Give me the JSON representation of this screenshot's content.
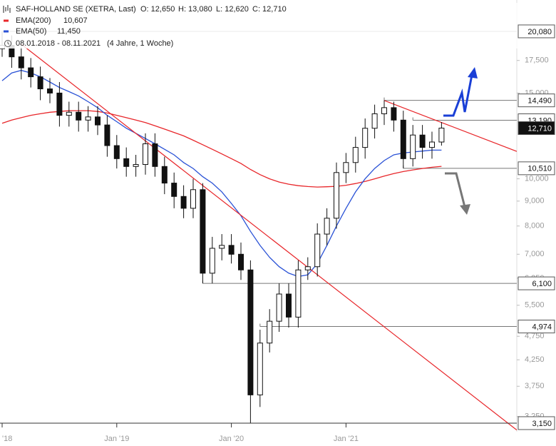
{
  "chart_data": {
    "type": "candlestick",
    "log_scale": true,
    "header": {
      "title": "SAF-HOLLAND SE (XETRA, Last)",
      "open": "O: 12,650",
      "high": "H: 13,080",
      "low": "L: 12,620",
      "close": "C: 12,710",
      "period": "08.01.2018 - 08.11.2021",
      "span": "(4 Jahre, 1 Woche)"
    },
    "x": [
      "2018-01",
      "2018-02",
      "2018-03",
      "2018-04",
      "2018-05",
      "2018-06",
      "2018-07",
      "2018-08",
      "2018-09",
      "2018-10",
      "2018-11",
      "2018-12",
      "2019-01",
      "2019-02",
      "2019-03",
      "2019-04",
      "2019-05",
      "2019-06",
      "2019-07",
      "2019-08",
      "2019-09",
      "2019-10",
      "2019-11",
      "2019-12",
      "2020-01",
      "2020-02",
      "2020-03",
      "2020-04",
      "2020-05",
      "2020-06",
      "2020-07",
      "2020-08",
      "2020-09",
      "2020-10",
      "2020-11",
      "2020-12",
      "2021-01",
      "2021-02",
      "2021-03",
      "2021-04",
      "2021-05",
      "2021-06",
      "2021-07",
      "2021-08",
      "2021-09",
      "2021-10",
      "2021-11"
    ],
    "open": [
      18500,
      18800,
      17800,
      16900,
      16200,
      15300,
      15000,
      13500,
      13700,
      13200,
      13400,
      12900,
      11700,
      11000,
      10600,
      10700,
      11800,
      10600,
      9800,
      9200,
      8700,
      9500,
      6400,
      7200,
      7300,
      7000,
      6500,
      3600,
      4600,
      5100,
      5800,
      5200,
      6500,
      6600,
      7700,
      8300,
      10300,
      10800,
      11600,
      12700,
      13600,
      14000,
      13200,
      11000,
      12300,
      11600,
      11900
    ],
    "high": [
      20080,
      19700,
      18700,
      17700,
      17000,
      16100,
      15800,
      14400,
      14400,
      14100,
      14100,
      13500,
      12300,
      11600,
      11200,
      12400,
      12400,
      11100,
      10300,
      9700,
      10000,
      9800,
      7600,
      7700,
      7700,
      7400,
      6800,
      4900,
      5400,
      6100,
      6100,
      6800,
      6900,
      8100,
      8700,
      10800,
      11300,
      12200,
      13300,
      14200,
      14490,
      14400,
      13800,
      12900,
      12900,
      12500,
      13080
    ],
    "low": [
      17800,
      16900,
      16000,
      15400,
      14500,
      14300,
      12800,
      12800,
      12500,
      12500,
      12300,
      11100,
      10500,
      10100,
      10100,
      10200,
      10100,
      9300,
      8700,
      8300,
      8300,
      6100,
      6100,
      6800,
      6700,
      6200,
      3150,
      3400,
      4400,
      4850,
      4950,
      4950,
      6200,
      6300,
      7300,
      7900,
      9800,
      10300,
      11000,
      12100,
      12900,
      12500,
      10510,
      10600,
      11000,
      11000,
      11700
    ],
    "close": [
      18800,
      17800,
      16900,
      16200,
      15300,
      15000,
      13500,
      13700,
      13200,
      13400,
      12900,
      11700,
      11000,
      10600,
      10700,
      11800,
      10600,
      9800,
      9200,
      8700,
      9500,
      6400,
      7200,
      7300,
      7000,
      6500,
      3600,
      4600,
      5100,
      5800,
      5200,
      6500,
      6600,
      7700,
      8300,
      10300,
      10800,
      11600,
      12700,
      13600,
      14000,
      13200,
      11000,
      12300,
      11600,
      11900,
      12710
    ],
    "series": [
      {
        "name": "EMA(200)",
        "value_label": "10,607",
        "color": "#e8262a",
        "values": [
          13000,
          13200,
          13350,
          13500,
          13600,
          13700,
          13750,
          13800,
          13800,
          13800,
          13750,
          13650,
          13500,
          13350,
          13200,
          13050,
          12850,
          12650,
          12450,
          12250,
          12000,
          11750,
          11500,
          11250,
          11000,
          10750,
          10450,
          10200,
          10000,
          9850,
          9750,
          9680,
          9640,
          9620,
          9630,
          9650,
          9700,
          9780,
          9880,
          10000,
          10130,
          10250,
          10350,
          10430,
          10500,
          10560,
          10607
        ]
      },
      {
        "name": "EMA(50)",
        "value_label": "11,450",
        "color": "#2a52d6",
        "values": [
          15900,
          16500,
          16700,
          16500,
          16200,
          15800,
          15400,
          15100,
          14800,
          14400,
          14000,
          13500,
          13100,
          12700,
          12400,
          12100,
          11800,
          11500,
          11200,
          10800,
          10500,
          10100,
          9800,
          9400,
          8900,
          8400,
          7800,
          7300,
          6900,
          6600,
          6400,
          6300,
          6350,
          6700,
          7300,
          8000,
          8700,
          9400,
          10000,
          10500,
          10900,
          11200,
          11300,
          11350,
          11400,
          11450,
          11450
        ]
      }
    ],
    "trendlines": [
      {
        "color": "#e8262a",
        "x": [
          "2018-03",
          "2021-07"
        ],
        "values": [
          18900,
          4630
        ]
      },
      {
        "color": "#e8262a",
        "x": [
          "2021-05",
          "2021-11"
        ],
        "values": [
          14480,
          13050
        ]
      }
    ],
    "levels": [
      {
        "value": 20080,
        "label": "20,080",
        "from": "2018-01"
      },
      {
        "value": 14490,
        "label": "14,490",
        "from": "2021-05"
      },
      {
        "value": 13190,
        "label": "13,190",
        "from": "2021-08"
      },
      {
        "value": 12710,
        "label": "12,710",
        "last": true
      },
      {
        "value": 10510,
        "label": "10,510",
        "from": "2021-07"
      },
      {
        "value": 6100,
        "label": "6,100",
        "from": "2019-10"
      },
      {
        "value": 4974,
        "label": "4,974",
        "from": "2020-04"
      },
      {
        "value": 3150,
        "label": "3,150",
        "from": "2018-01"
      }
    ],
    "ylim": [
      3076,
      23290
    ],
    "yticks": [
      {
        "value": 17500,
        "label": "17,500"
      },
      {
        "value": 15000,
        "label": "15,000"
      },
      {
        "value": 10000,
        "label": "10,000"
      },
      {
        "value": 9000,
        "label": "9,000"
      },
      {
        "value": 8000,
        "label": "8,000"
      },
      {
        "value": 7000,
        "label": "7,000"
      },
      {
        "value": 6250,
        "label": "6,250"
      },
      {
        "value": 5500,
        "label": "5,500"
      },
      {
        "value": 4750,
        "label": "4,750"
      },
      {
        "value": 4250,
        "label": "4,250"
      },
      {
        "value": 3750,
        "label": "3,750"
      },
      {
        "value": 3250,
        "label": "3,250"
      }
    ],
    "xticks": [
      {
        "value": "2018-01",
        "label": "'18"
      },
      {
        "value": "2019-01",
        "label": "Jan '19"
      },
      {
        "value": "2020-01",
        "label": "Jan '20"
      },
      {
        "value": "2021-01",
        "label": "Jan '21"
      }
    ]
  }
}
